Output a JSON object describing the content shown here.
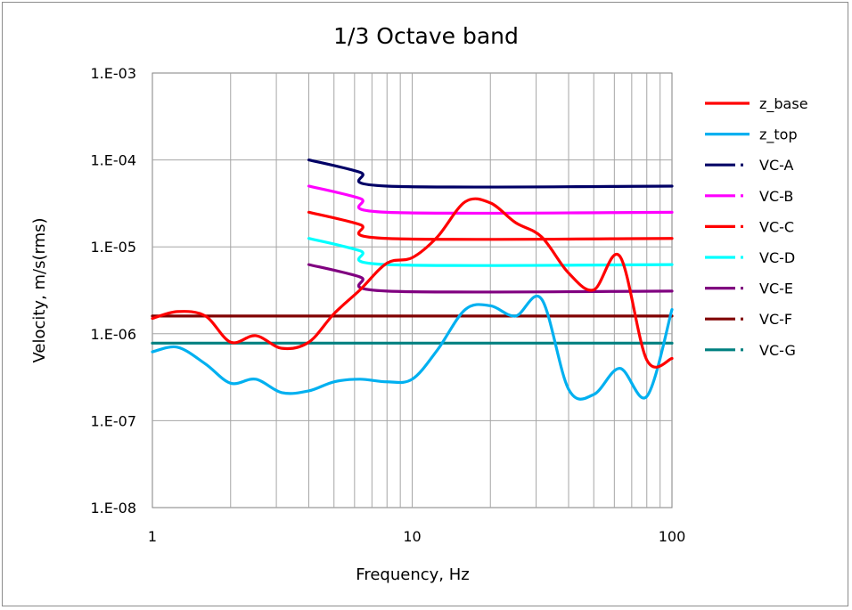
{
  "chart_data": {
    "type": "line",
    "title": "1/3 Octave band",
    "xlabel": "Frequency, Hz",
    "ylabel": "Velocity, m/s(rms)",
    "x_scale": "log",
    "y_scale": "log",
    "xlim": [
      1,
      100
    ],
    "ylim": [
      1e-08,
      0.001
    ],
    "grid": true,
    "legend_position": "right",
    "x_ticks": [
      {
        "value": 1,
        "label": "1"
      },
      {
        "value": 10,
        "label": "10"
      },
      {
        "value": 100,
        "label": "100"
      }
    ],
    "y_ticks": [
      {
        "value": 1e-08,
        "label": "1.E-08"
      },
      {
        "value": 1e-07,
        "label": "1.E-07"
      },
      {
        "value": 1e-06,
        "label": "1.E-06"
      },
      {
        "value": 1e-05,
        "label": "1.E-05"
      },
      {
        "value": 0.0001,
        "label": "1.E-04"
      },
      {
        "value": 0.001,
        "label": "1.E-03"
      }
    ],
    "series": [
      {
        "name": "z_base",
        "color": "#ff0000",
        "style": "solid",
        "x": [
          1,
          1.25,
          1.6,
          2,
          2.5,
          3.15,
          4,
          5,
          6.3,
          8,
          10,
          12.5,
          16,
          20,
          25,
          31.5,
          40,
          50,
          63,
          80,
          100
        ],
        "y": [
          1.5e-06,
          1.8e-06,
          1.6e-06,
          8e-07,
          9.5e-07,
          6.8e-07,
          8e-07,
          1.7e-06,
          3.2e-06,
          6.5e-06,
          7.5e-06,
          1.3e-05,
          3.3e-05,
          3.2e-05,
          1.9e-05,
          1.3e-05,
          5e-06,
          3.2e-06,
          7.8e-06,
          5e-07,
          5.2e-07
        ]
      },
      {
        "name": "z_top",
        "color": "#00b0f0",
        "style": "solid",
        "x": [
          1,
          1.25,
          1.6,
          2,
          2.5,
          3.15,
          4,
          5,
          6.3,
          8,
          10,
          12.5,
          16,
          20,
          25,
          31.5,
          40,
          50,
          63,
          80,
          100
        ],
        "y": [
          6.2e-07,
          7e-07,
          4.5e-07,
          2.7e-07,
          3e-07,
          2.1e-07,
          2.2e-07,
          2.8e-07,
          3e-07,
          2.8e-07,
          3e-07,
          6.5e-07,
          1.9e-06,
          2.1e-06,
          1.6e-06,
          2.5e-06,
          2.3e-07,
          2e-07,
          4e-07,
          1.9e-07,
          1.9e-06
        ]
      },
      {
        "name": "VC-A",
        "color": "#000066",
        "style": "dash-dot",
        "x": [
          4,
          6.3,
          8,
          100
        ],
        "y": [
          0.0001,
          7.2e-05,
          5e-05,
          5e-05
        ]
      },
      {
        "name": "VC-B",
        "color": "#ff00ff",
        "style": "dash-dot",
        "x": [
          4,
          6.3,
          8,
          100
        ],
        "y": [
          5e-05,
          3.6e-05,
          2.5e-05,
          2.5e-05
        ]
      },
      {
        "name": "VC-C",
        "color": "#ff0000",
        "style": "dash-dot",
        "x": [
          4,
          6.3,
          8,
          100
        ],
        "y": [
          2.5e-05,
          1.8e-05,
          1.25e-05,
          1.25e-05
        ]
      },
      {
        "name": "VC-D",
        "color": "#00ffff",
        "style": "dash-dot",
        "x": [
          4,
          6.3,
          8,
          100
        ],
        "y": [
          1.25e-05,
          9e-06,
          6.25e-06,
          6.25e-06
        ]
      },
      {
        "name": "VC-E",
        "color": "#800080",
        "style": "dash-dot",
        "x": [
          4,
          6.3,
          8,
          100
        ],
        "y": [
          6.25e-06,
          4.5e-06,
          3.1e-06,
          3.1e-06
        ]
      },
      {
        "name": "VC-F",
        "color": "#800000",
        "style": "dash-dot",
        "x": [
          1,
          100
        ],
        "y": [
          1.6e-06,
          1.6e-06
        ]
      },
      {
        "name": "VC-G",
        "color": "#008080",
        "style": "dash-dot",
        "x": [
          1,
          100
        ],
        "y": [
          7.8e-07,
          7.8e-07
        ]
      }
    ]
  }
}
